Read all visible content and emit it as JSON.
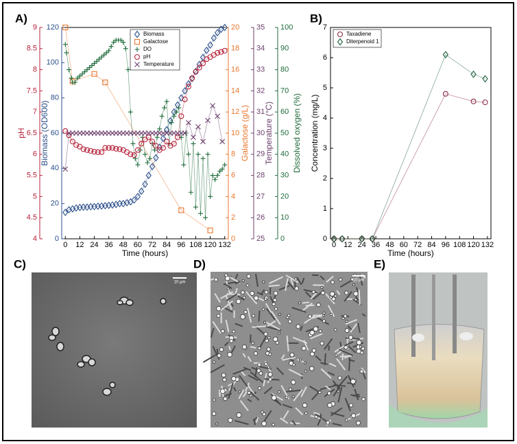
{
  "chart_data": [
    {
      "type": "line",
      "panel_label": "A)",
      "xlabel": "Time (hours)",
      "xlim": [
        -3,
        135
      ],
      "xticks": [
        0,
        12,
        24,
        36,
        48,
        60,
        72,
        84,
        96,
        108,
        120,
        132
      ],
      "axes": [
        {
          "label": "pH",
          "color": "#b5223a",
          "lim": [
            4,
            9
          ],
          "ticks": [
            4,
            4.5,
            5,
            5.5,
            6,
            6.5,
            7,
            7.5,
            8,
            8.5,
            9
          ]
        },
        {
          "label": "Biomass (OD600)",
          "color": "#2b4f8a",
          "lim": [
            0,
            120
          ],
          "ticks": [
            0,
            20,
            40,
            60,
            80,
            100,
            120
          ]
        },
        {
          "label": "Galactose (g/L)",
          "color": "#e8762c",
          "lim": [
            0,
            20
          ],
          "ticks": [
            0,
            2,
            4,
            6,
            8,
            10,
            12,
            14,
            16,
            18,
            20
          ]
        },
        {
          "label": "Temperature (°C)",
          "color": "#6b3f6b",
          "lim": [
            25,
            35
          ],
          "ticks": [
            25,
            26,
            27,
            28,
            29,
            30,
            31,
            32,
            33,
            34,
            35
          ]
        },
        {
          "label": "Dissolved oxygen (%)",
          "color": "#1e6b3a",
          "lim": [
            0,
            100
          ],
          "ticks": [
            0,
            10,
            20,
            30,
            40,
            50,
            60,
            70,
            80,
            90,
            100
          ]
        }
      ],
      "series": [
        {
          "name": "Biomass",
          "color": "#2b4f8a",
          "marker": "diamond",
          "axis": 1,
          "x": [
            0,
            3,
            6,
            9,
            12,
            15,
            18,
            21,
            24,
            27,
            30,
            33,
            36,
            39,
            42,
            45,
            48,
            51,
            54,
            57,
            60,
            63,
            66,
            69,
            72,
            75,
            78,
            81,
            84,
            87,
            90,
            93,
            96,
            99,
            102,
            105,
            108,
            111,
            114,
            117,
            120,
            123,
            126,
            129,
            132
          ],
          "values": [
            15,
            16.5,
            17,
            17.5,
            17.8,
            18,
            18,
            18.2,
            18.3,
            18.5,
            18.6,
            18.8,
            19,
            19.2,
            19.5,
            20,
            20,
            20.5,
            21,
            22,
            24,
            27,
            31,
            36,
            41,
            46,
            52,
            57,
            62,
            67,
            72,
            76,
            80,
            84,
            88,
            91,
            95,
            99,
            103,
            107,
            110,
            114,
            117,
            119,
            120
          ]
        },
        {
          "name": "Galactose",
          "color": "#e8762c",
          "marker": "square",
          "axis": 2,
          "x": [
            0,
            6,
            24,
            33,
            96,
            120
          ],
          "values": [
            20,
            14.9,
            15.6,
            14.8,
            2.7,
            0.8
          ]
        },
        {
          "name": "DO",
          "color": "#1e6b3a",
          "marker": "plus",
          "axis": 4,
          "x": [
            0,
            1,
            3,
            5,
            6,
            8,
            10,
            12,
            14,
            16,
            18,
            20,
            22,
            24,
            26,
            28,
            30,
            32,
            34,
            36,
            38,
            40,
            42,
            44,
            46,
            48,
            50,
            52,
            54,
            56,
            58,
            60,
            62,
            64,
            66,
            68,
            70,
            72,
            74,
            76,
            78,
            80,
            82,
            84,
            86,
            88,
            90,
            92,
            94,
            96,
            98,
            100,
            102,
            104,
            106,
            108,
            110,
            112,
            114,
            116,
            118,
            120,
            122,
            124,
            126,
            128,
            130,
            132
          ],
          "values": [
            92,
            88,
            80,
            76,
            74,
            74,
            76,
            77,
            78,
            79,
            80,
            81,
            82,
            83,
            84,
            85,
            86,
            87,
            88,
            89,
            91,
            93,
            94,
            94,
            94,
            93,
            90,
            80,
            60,
            45,
            38,
            35,
            42,
            48,
            40,
            36,
            38,
            45,
            42,
            48,
            52,
            58,
            62,
            65,
            45,
            55,
            58,
            60,
            62,
            48,
            35,
            50,
            40,
            22,
            45,
            15,
            40,
            12,
            38,
            10,
            40,
            20,
            30,
            28,
            30,
            32,
            33,
            35
          ]
        },
        {
          "name": "pH",
          "color": "#b5223a",
          "marker": "circle",
          "axis": 0,
          "x": [
            0,
            3,
            6,
            9,
            12,
            15,
            18,
            21,
            24,
            27,
            30,
            33,
            36,
            39,
            42,
            45,
            48,
            51,
            54,
            57,
            60,
            63,
            66,
            69,
            72,
            75,
            78,
            81,
            84,
            87,
            90,
            93,
            96,
            99,
            102,
            105,
            108,
            111,
            114,
            117,
            120,
            123,
            126,
            129,
            132
          ],
          "values": [
            6.55,
            6.45,
            6.3,
            6.22,
            6.18,
            6.12,
            6.1,
            6.08,
            6.06,
            6.05,
            6.05,
            6.15,
            6.15,
            6.15,
            6.13,
            6.12,
            6.1,
            6.05,
            6.0,
            5.98,
            6.1,
            6.25,
            6.35,
            6.4,
            6.3,
            6.2,
            6.1,
            6.15,
            6.3,
            6.2,
            6.25,
            6.4,
            6.9,
            7.3,
            7.6,
            7.8,
            7.95,
            8.05,
            8.15,
            8.25,
            8.3,
            8.35,
            8.4,
            8.42,
            8.45
          ]
        },
        {
          "name": "Temperature",
          "color": "#6b3f6b",
          "marker": "x",
          "axis": 3,
          "x": [
            0,
            3,
            6,
            9,
            12,
            15,
            18,
            21,
            24,
            27,
            30,
            33,
            36,
            39,
            42,
            45,
            48,
            51,
            54,
            57,
            60,
            63,
            66,
            69,
            72,
            75,
            78,
            81,
            84,
            87,
            90,
            93,
            96,
            99,
            102,
            106,
            110,
            114,
            118,
            122,
            126,
            130
          ],
          "values": [
            28.3,
            30,
            30,
            30,
            30,
            30,
            30,
            30,
            30,
            30,
            30,
            30,
            30,
            30,
            30,
            30,
            30,
            30,
            30,
            30,
            30,
            30,
            30,
            30,
            30,
            30,
            30,
            30,
            30,
            30,
            30,
            30,
            30,
            30,
            30.5,
            29.8,
            30.3,
            29.6,
            30.6,
            31.3,
            30.8,
            29.6
          ]
        }
      ]
    },
    {
      "type": "line",
      "panel_label": "B)",
      "xlabel": "Time (hours)",
      "ylabel": "Concentration (mg/L)",
      "xlim": [
        -3,
        135
      ],
      "xticks": [
        0,
        12,
        24,
        36,
        48,
        60,
        72,
        84,
        96,
        108,
        120,
        132
      ],
      "ylim": [
        0,
        7
      ],
      "yticks": [
        0,
        1,
        2,
        3,
        4,
        5,
        6,
        7
      ],
      "series": [
        {
          "name": "Taxadiene",
          "color": "#8b2a45",
          "marker": "circle",
          "x": [
            0,
            7,
            24,
            33,
            96,
            120,
            130
          ],
          "values": [
            0,
            0,
            0,
            0,
            4.8,
            4.55,
            4.52
          ]
        },
        {
          "name": "Diterpenoid 1",
          "color": "#1e5e3a",
          "marker": "diamond",
          "x": [
            0,
            7,
            24,
            33,
            96,
            120,
            130
          ],
          "values": [
            0,
            0,
            0,
            0,
            6.1,
            5.45,
            5.3
          ]
        }
      ]
    }
  ],
  "images": [
    {
      "panel_label": "C)",
      "scale_bar": "10 µm"
    },
    {
      "panel_label": "D)",
      "scale_bar": "10 µm"
    },
    {
      "panel_label": "E)"
    }
  ]
}
